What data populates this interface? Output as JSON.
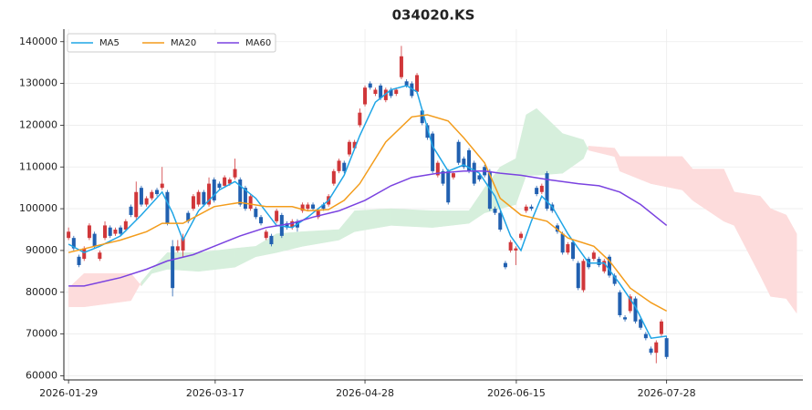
{
  "chart_data": {
    "type": "candlestick",
    "title": "034020.KS",
    "xlim": [
      -0.9,
      141.2
    ],
    "xticks": [
      {
        "value": 0,
        "label": "2026-01-29"
      },
      {
        "value": 28.2,
        "label": "2026-03-17"
      },
      {
        "value": 57,
        "label": "2026-04-28"
      },
      {
        "value": 86.1,
        "label": "2026-06-15"
      },
      {
        "value": 115,
        "label": "2026-07-28"
      }
    ],
    "ylim": [
      59000,
      143000
    ],
    "yticks": [
      60000,
      70000,
      80000,
      90000,
      100000,
      110000,
      120000,
      130000,
      140000
    ],
    "grid": true,
    "legend": "upper left",
    "up_color": "#d0373a",
    "down_color": "#2160b0",
    "open": [
      93000,
      93000,
      88500,
      88000,
      93000,
      94000,
      88000,
      93000,
      95500,
      94000,
      95500,
      95000,
      100500,
      98000,
      105000,
      101000,
      102500,
      104500,
      105000,
      104000,
      91000,
      90000,
      90000,
      99000,
      100000,
      101000,
      104000,
      101000,
      107000,
      106000,
      105500,
      106000,
      107500,
      107000,
      105000,
      100000,
      100000,
      98000,
      93000,
      93500,
      97000,
      98500,
      96500,
      95500,
      97000,
      99500,
      100000,
      101000,
      98000,
      101000,
      101000,
      106000,
      109000,
      111000,
      113000,
      114500,
      120000,
      125000,
      130000,
      127500,
      129500,
      126000,
      128500,
      127500,
      131500,
      130500,
      130000,
      128000,
      123500,
      120000,
      118000,
      108000,
      109000,
      109000,
      107500,
      116000,
      112000,
      114000,
      111000,
      108000,
      110000,
      109000,
      100000,
      99000,
      87000,
      90000,
      90000,
      93000,
      99500,
      100500,
      105000,
      104000,
      108500,
      101000,
      96000,
      94000,
      89500,
      92000,
      87000,
      80500,
      88000,
      88000,
      88000,
      85000,
      88500,
      84000,
      80000,
      74000,
      75500,
      78500,
      73500,
      70000,
      66500,
      65500,
      70000,
      69000
    ],
    "high": [
      95500,
      93500,
      89000,
      91000,
      96500,
      94500,
      90000,
      97000,
      96000,
      95500,
      96000,
      97500,
      101000,
      106500,
      105500,
      103000,
      104500,
      105000,
      110000,
      104500,
      92500,
      92500,
      94000,
      99500,
      103500,
      104500,
      104500,
      107500,
      107500,
      106500,
      108000,
      107500,
      112000,
      107500,
      105500,
      103500,
      100500,
      98500,
      95000,
      94000,
      100000,
      99000,
      97000,
      97500,
      97500,
      101500,
      101500,
      101500,
      100000,
      101500,
      103500,
      109500,
      112000,
      111500,
      116500,
      116500,
      124000,
      129500,
      130500,
      129000,
      130000,
      129000,
      129000,
      129000,
      139000,
      131000,
      130500,
      132500,
      124000,
      120500,
      118500,
      111500,
      109500,
      109500,
      109000,
      116500,
      112500,
      114500,
      111500,
      108500,
      110500,
      109500,
      100500,
      99500,
      87500,
      92500,
      91000,
      94500,
      101000,
      101000,
      105500,
      106000,
      109000,
      101500,
      96500,
      94500,
      92000,
      92500,
      87500,
      88000,
      88500,
      90000,
      88500,
      88000,
      89000,
      84500,
      80500,
      74500,
      79500,
      79000,
      74000,
      70500,
      67000,
      68500,
      73500,
      69500
    ],
    "low": [
      92500,
      90000,
      86000,
      87500,
      92500,
      90500,
      87500,
      92500,
      93000,
      93500,
      93500,
      94500,
      98000,
      97500,
      100500,
      100500,
      102000,
      103000,
      104500,
      96000,
      79000,
      89500,
      88500,
      96500,
      99500,
      100500,
      100500,
      100500,
      101500,
      104500,
      105000,
      105500,
      107000,
      100500,
      99500,
      99500,
      97500,
      96000,
      92500,
      91000,
      96500,
      93000,
      95000,
      95000,
      94500,
      99000,
      99500,
      99500,
      97500,
      99500,
      100500,
      105500,
      108500,
      108500,
      112500,
      114000,
      119500,
      124500,
      128500,
      127000,
      126000,
      125500,
      126500,
      127000,
      131000,
      129000,
      126500,
      127500,
      120000,
      116500,
      108500,
      107500,
      105500,
      101000,
      107000,
      110500,
      109500,
      108500,
      105500,
      106500,
      107500,
      99500,
      98500,
      94500,
      85500,
      89500,
      86500,
      92500,
      99000,
      99500,
      103000,
      103500,
      99500,
      99000,
      94000,
      89000,
      89000,
      87500,
      80500,
      80000,
      85500,
      87500,
      86000,
      84500,
      83500,
      81500,
      74000,
      73000,
      75000,
      72500,
      71000,
      68500,
      65000,
      63000,
      69500,
      64000
    ],
    "close": [
      94500,
      90500,
      86500,
      90500,
      96000,
      91000,
      89500,
      96000,
      93500,
      95000,
      94000,
      97000,
      98500,
      104000,
      101000,
      102500,
      104000,
      103500,
      106000,
      96500,
      81000,
      91000,
      93000,
      97000,
      103000,
      104000,
      101000,
      106000,
      102000,
      105000,
      107500,
      107000,
      109500,
      101000,
      100000,
      103000,
      98000,
      96500,
      94500,
      91500,
      99500,
      93500,
      95500,
      97000,
      95500,
      101000,
      101000,
      100000,
      99500,
      100000,
      103000,
      109000,
      111500,
      109000,
      116000,
      116000,
      123000,
      129000,
      129000,
      128500,
      126500,
      128500,
      127000,
      128500,
      136500,
      129500,
      127000,
      132000,
      120500,
      117000,
      109000,
      111000,
      106000,
      101500,
      108500,
      111000,
      110000,
      109000,
      106000,
      107000,
      108000,
      100000,
      99000,
      95000,
      86000,
      92000,
      90500,
      94000,
      100500,
      100000,
      103500,
      105500,
      100000,
      99500,
      94500,
      89500,
      91500,
      88000,
      81000,
      87500,
      86000,
      89500,
      86500,
      87500,
      84000,
      82000,
      74500,
      73500,
      79000,
      73000,
      71500,
      69000,
      65500,
      68000,
      73000,
      64500
    ],
    "series": [
      {
        "name": "MA5",
        "color": "#1fa5e6",
        "x": [
          0,
          3,
          6,
          10,
          14,
          18,
          20,
          22,
          25,
          29,
          32,
          36,
          40,
          43,
          46,
          50,
          53,
          56,
          59,
          62,
          65,
          67,
          70,
          73,
          76,
          79,
          82,
          85,
          87,
          89,
          91,
          93,
          96,
          100,
          103,
          106,
          109,
          112,
          115
        ],
        "values": [
          91500,
          89500,
          91000,
          93500,
          98500,
          104000,
          99000,
          92500,
          99500,
          104500,
          106500,
          102500,
          96000,
          95500,
          98000,
          102000,
          108000,
          117500,
          125500,
          128500,
          129500,
          128000,
          115000,
          109000,
          110500,
          108500,
          103000,
          93500,
          90000,
          97000,
          103000,
          100500,
          94000,
          87000,
          87000,
          82000,
          76500,
          69000,
          69500
        ]
      },
      {
        "name": "MA20",
        "color": "#f39c1b",
        "x": [
          0,
          5,
          10,
          15,
          18,
          22,
          28,
          33,
          38,
          43,
          46,
          50,
          53,
          56,
          61,
          66,
          69,
          73,
          76,
          80,
          83,
          87,
          92,
          96,
          101,
          104,
          108,
          112,
          115
        ],
        "values": [
          89500,
          91000,
          92500,
          94500,
          96500,
          96500,
          100500,
          101500,
          100500,
          100500,
          99500,
          99800,
          102000,
          106000,
          116000,
          122000,
          122500,
          121000,
          117000,
          111000,
          102500,
          98500,
          97000,
          93000,
          91000,
          87500,
          81000,
          77500,
          75500
        ]
      },
      {
        "name": "MA60",
        "color": "#7a42e0",
        "x": [
          0,
          3,
          10,
          15,
          19,
          24,
          28,
          33,
          38,
          43,
          47,
          52,
          57,
          62,
          66,
          71,
          76,
          80,
          83,
          87,
          92,
          98,
          102,
          106,
          110,
          115
        ],
        "values": [
          81500,
          81500,
          83500,
          85500,
          87500,
          89000,
          91000,
          93500,
          95500,
          96500,
          98000,
          99500,
          102000,
          105500,
          107500,
          108500,
          109000,
          109000,
          108500,
          108000,
          107000,
          106000,
          105500,
          104000,
          101000,
          96000
        ]
      }
    ],
    "cloud": {
      "up_color": "#d6efdc",
      "down_color": "#fddcdc",
      "x": [
        0,
        3,
        12,
        14,
        16,
        19,
        25,
        32,
        36,
        40,
        45,
        52,
        55,
        62,
        70,
        77,
        80,
        83,
        86,
        88,
        90,
        95,
        99,
        100,
        105,
        106,
        112,
        118,
        120,
        126,
        128,
        133,
        135,
        138,
        140
      ],
      "span_a": [
        76500,
        76500,
        78000,
        82500,
        85500,
        89500,
        89500,
        90500,
        91000,
        94000,
        94500,
        95000,
        99500,
        100000,
        99500,
        99500,
        105000,
        110000,
        112000,
        122500,
        124000,
        118000,
        116500,
        114000,
        112500,
        109000,
        106000,
        104500,
        102000,
        97000,
        96000,
        84000,
        79000,
        78500,
        75000
      ],
      "span_b": [
        81000,
        84500,
        84500,
        81500,
        84500,
        85500,
        85000,
        86000,
        88500,
        89500,
        91000,
        92500,
        94500,
        96000,
        95500,
        96500,
        99000,
        100000,
        101000,
        108000,
        108000,
        108500,
        112000,
        115000,
        114500,
        112500,
        112500,
        112500,
        109500,
        109500,
        104000,
        103000,
        100000,
        98500,
        94000
      ]
    }
  }
}
